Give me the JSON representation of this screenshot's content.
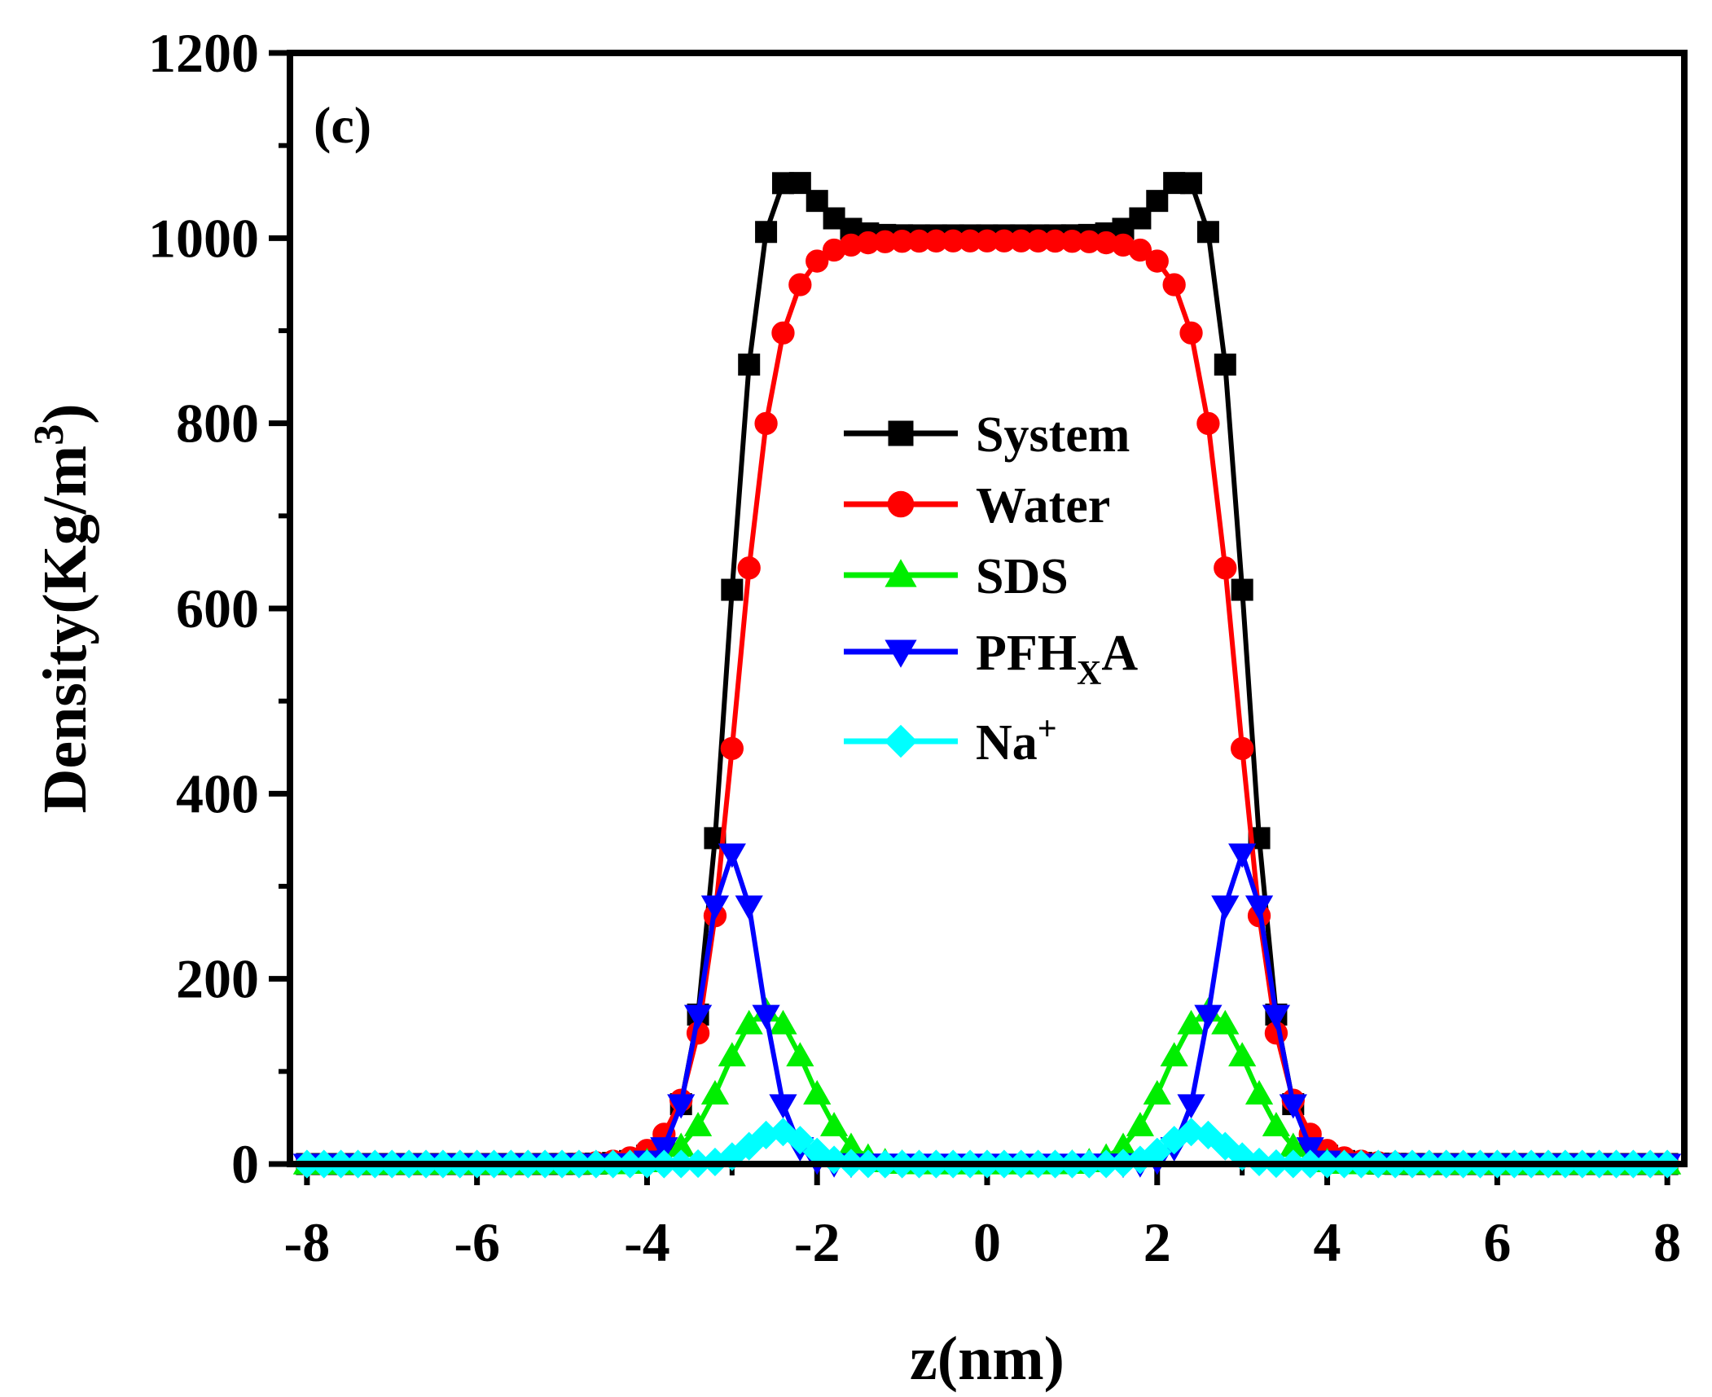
{
  "chart_data": {
    "type": "line",
    "panel_label": "(c)",
    "title": "",
    "xlabel": "z(nm)",
    "ylabel": "Density(Kg/m",
    "ylabel_sup": "3",
    "ylabel_close": ")",
    "xlim": [
      -8.2,
      8.2
    ],
    "ylim": [
      0,
      1200
    ],
    "xticks": [
      -8,
      -6,
      -4,
      -2,
      0,
      2,
      4,
      6,
      8
    ],
    "xtick_labels": [
      "-8",
      "-6",
      "-4",
      "-2",
      "0",
      "2",
      "4",
      "6",
      "8"
    ],
    "yticks": [
      0,
      200,
      400,
      600,
      800,
      1000,
      1200
    ],
    "ytick_labels": [
      "0",
      "200",
      "400",
      "600",
      "800",
      "1000",
      "1200"
    ],
    "grid": false,
    "legend_position": "center",
    "x_range": [
      -8,
      8
    ],
    "x_step": 0.2,
    "series": [
      {
        "name": "System",
        "legend_main": "System",
        "legend_sub": "",
        "legend_sup": "",
        "color": "#000000",
        "marker": "square",
        "profile": {
          "plateau": 1003,
          "edge": 3.05,
          "width": 0.2,
          "bump": 100,
          "bump_center": 2.55,
          "bump_sigma": 0.42
        }
      },
      {
        "name": "Water",
        "legend_main": "Water",
        "legend_sub": "",
        "legend_sup": "",
        "color": "#ff0000",
        "marker": "circle",
        "profile": {
          "plateau": 997,
          "edge": 2.95,
          "width": 0.25
        }
      },
      {
        "name": "SDS",
        "legend_main": "SDS",
        "legend_sub": "",
        "legend_sup": "",
        "color": "#00ee00",
        "marker": "triangle-up",
        "profile": {
          "peak": 165,
          "center": 2.6,
          "sigma": 0.48
        }
      },
      {
        "name": "PFHxA",
        "legend_main": "PFH",
        "legend_sub": "X",
        "legend_sup": "",
        "legend_tail": "A",
        "color": "#0000ff",
        "marker": "triangle-down",
        "profile": {
          "peak": 335,
          "center": 3.0,
          "sigma": 0.33
        }
      },
      {
        "name": "Na+",
        "legend_main": "Na",
        "legend_sub": "",
        "legend_sup": "+",
        "color": "#00ffff",
        "marker": "diamond",
        "profile": {
          "peak": 35,
          "center": 2.45,
          "sigma": 0.32
        }
      }
    ]
  }
}
